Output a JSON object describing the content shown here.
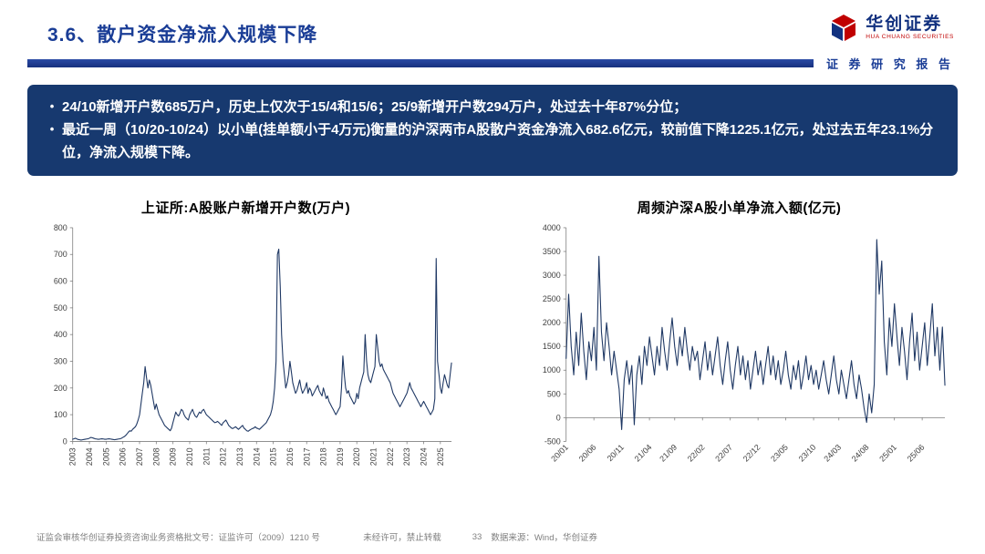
{
  "header": {
    "title": "3.6、散户资金净流入规模下降",
    "logo": {
      "name": "华创证券",
      "name_en": "HUA CHUANG SECURITIES",
      "tagline": "证 券 研 究 报 告"
    },
    "accent_color": "#c00000",
    "bar_color": "#16307e"
  },
  "summary": {
    "bullet_glyph": "•",
    "bullets": [
      "24/10新增开户数685万户，历史上仅次于15/4和15/6；25/9新增开户数294万户，处过去十年87%分位；",
      "最近一周（10/20-10/24）以小单(挂单额小于4万元)衡量的沪深两市A股散户资金净流入682.6亿元，较前值下降1225.1亿元，处过去五年23.1%分位，净流入规模下降。"
    ]
  },
  "footer": {
    "license": "证监会审核华创证券投资咨询业务资格批文号：证监许可（2009）1210 号",
    "notice": "未经许可，禁止转载",
    "page": "33",
    "source": "数据来源：Wind，华创证券"
  },
  "chart_data": [
    {
      "type": "line",
      "title": "上证所:A股账户新增开户数(万户)",
      "ylabel": "万户",
      "ylim": [
        0,
        800
      ],
      "ytick": 100,
      "color": "#1f3864",
      "xrot": -90,
      "x_ticks": [
        {
          "label": "2003",
          "i": 0
        },
        {
          "label": "2004",
          "i": 12
        },
        {
          "label": "2005",
          "i": 24
        },
        {
          "label": "2006",
          "i": 36
        },
        {
          "label": "2007",
          "i": 48
        },
        {
          "label": "2008",
          "i": 60
        },
        {
          "label": "2009",
          "i": 72
        },
        {
          "label": "2010",
          "i": 84
        },
        {
          "label": "2011",
          "i": 96
        },
        {
          "label": "2012",
          "i": 108
        },
        {
          "label": "2013",
          "i": 120
        },
        {
          "label": "2014",
          "i": 132
        },
        {
          "label": "2015",
          "i": 144
        },
        {
          "label": "2016",
          "i": 156
        },
        {
          "label": "2017",
          "i": 168
        },
        {
          "label": "2018",
          "i": 180
        },
        {
          "label": "2019",
          "i": 192
        },
        {
          "label": "2020",
          "i": 204
        },
        {
          "label": "2021",
          "i": 216
        },
        {
          "label": "2022",
          "i": 228
        },
        {
          "label": "2023",
          "i": 240
        },
        {
          "label": "2024",
          "i": 252
        },
        {
          "label": "2025",
          "i": 264
        }
      ],
      "values": [
        8,
        10,
        12,
        9,
        7,
        6,
        5,
        6,
        7,
        8,
        9,
        10,
        12,
        15,
        14,
        12,
        10,
        9,
        8,
        8,
        9,
        10,
        9,
        8,
        8,
        9,
        10,
        9,
        8,
        7,
        6,
        7,
        8,
        9,
        10,
        12,
        15,
        18,
        22,
        28,
        35,
        40,
        38,
        45,
        50,
        55,
        65,
        80,
        100,
        140,
        180,
        220,
        280,
        240,
        200,
        230,
        210,
        180,
        150,
        120,
        140,
        120,
        100,
        90,
        80,
        70,
        60,
        55,
        50,
        45,
        40,
        50,
        70,
        90,
        110,
        100,
        95,
        105,
        120,
        115,
        100,
        90,
        85,
        80,
        100,
        110,
        120,
        105,
        95,
        90,
        100,
        110,
        105,
        115,
        120,
        110,
        100,
        95,
        90,
        85,
        80,
        75,
        70,
        72,
        75,
        70,
        65,
        60,
        70,
        75,
        80,
        70,
        60,
        55,
        50,
        48,
        52,
        55,
        50,
        45,
        50,
        55,
        60,
        50,
        45,
        40,
        38,
        42,
        45,
        48,
        50,
        55,
        50,
        48,
        45,
        50,
        55,
        60,
        65,
        70,
        80,
        90,
        100,
        120,
        150,
        200,
        300,
        700,
        720,
        580,
        400,
        300,
        250,
        200,
        220,
        250,
        300,
        260,
        220,
        200,
        180,
        190,
        210,
        230,
        200,
        180,
        190,
        200,
        220,
        180,
        200,
        190,
        170,
        180,
        190,
        200,
        210,
        190,
        180,
        170,
        200,
        180,
        160,
        170,
        150,
        140,
        130,
        120,
        110,
        100,
        110,
        120,
        130,
        200,
        320,
        250,
        200,
        180,
        190,
        170,
        160,
        150,
        140,
        150,
        180,
        160,
        200,
        220,
        240,
        260,
        400,
        300,
        250,
        230,
        220,
        240,
        260,
        280,
        400,
        350,
        300,
        280,
        290,
        270,
        260,
        250,
        240,
        230,
        220,
        200,
        180,
        170,
        160,
        150,
        140,
        130,
        140,
        150,
        160,
        170,
        180,
        200,
        220,
        200,
        190,
        180,
        170,
        160,
        150,
        140,
        130,
        140,
        150,
        140,
        130,
        120,
        110,
        100,
        110,
        120,
        160,
        685,
        300,
        250,
        200,
        180,
        220,
        250,
        230,
        210,
        200,
        250,
        294
      ]
    },
    {
      "type": "line",
      "title": "周频沪深A股小单净流入额(亿元)",
      "ylabel": "亿元",
      "ylim": [
        -500,
        4000
      ],
      "ytick": 500,
      "color": "#1f3864",
      "xrot": -45,
      "x_ticks": [
        {
          "label": "20/01",
          "i": 0
        },
        {
          "label": "20/06",
          "i": 11
        },
        {
          "label": "20/11",
          "i": 22
        },
        {
          "label": "21/04",
          "i": 33
        },
        {
          "label": "21/09",
          "i": 43
        },
        {
          "label": "22/02",
          "i": 54
        },
        {
          "label": "22/07",
          "i": 65
        },
        {
          "label": "22/12",
          "i": 76
        },
        {
          "label": "23/05",
          "i": 87
        },
        {
          "label": "23/10",
          "i": 98
        },
        {
          "label": "24/03",
          "i": 108
        },
        {
          "label": "24/08",
          "i": 119
        },
        {
          "label": "25/01",
          "i": 130
        },
        {
          "label": "25/06",
          "i": 141
        }
      ],
      "values": [
        1246,
        2600,
        1500,
        900,
        1800,
        1100,
        2200,
        1400,
        800,
        1600,
        1200,
        1900,
        1000,
        3400,
        1800,
        1200,
        2000,
        1500,
        900,
        1400,
        1000,
        600,
        -250,
        800,
        1200,
        700,
        1100,
        -150,
        900,
        1300,
        700,
        1500,
        1100,
        1700,
        1300,
        900,
        1500,
        1100,
        1900,
        1400,
        1000,
        1600,
        2100,
        1500,
        1100,
        1700,
        1300,
        1900,
        1400,
        1000,
        1500,
        1200,
        1400,
        800,
        1200,
        1600,
        1000,
        1400,
        900,
        1300,
        1700,
        1100,
        700,
        1200,
        1600,
        1000,
        600,
        1100,
        1500,
        900,
        1300,
        800,
        1200,
        600,
        1000,
        1400,
        900,
        1200,
        700,
        1100,
        1500,
        900,
        1300,
        800,
        1200,
        700,
        1000,
        1400,
        900,
        600,
        1100,
        800,
        1200,
        600,
        900,
        1300,
        800,
        1100,
        700,
        1000,
        600,
        900,
        1200,
        800,
        500,
        900,
        1300,
        800,
        500,
        1000,
        700,
        400,
        800,
        1200,
        700,
        400,
        900,
        600,
        200,
        -100,
        500,
        100,
        700,
        3750,
        2600,
        3300,
        1600,
        900,
        2100,
        1500,
        2400,
        1700,
        1100,
        1900,
        1400,
        800,
        1600,
        2200,
        1200,
        1800,
        1000,
        1500,
        2000,
        1100,
        1700,
        2400,
        1300,
        1900,
        1000,
        1907.7,
        682.6
      ]
    }
  ]
}
